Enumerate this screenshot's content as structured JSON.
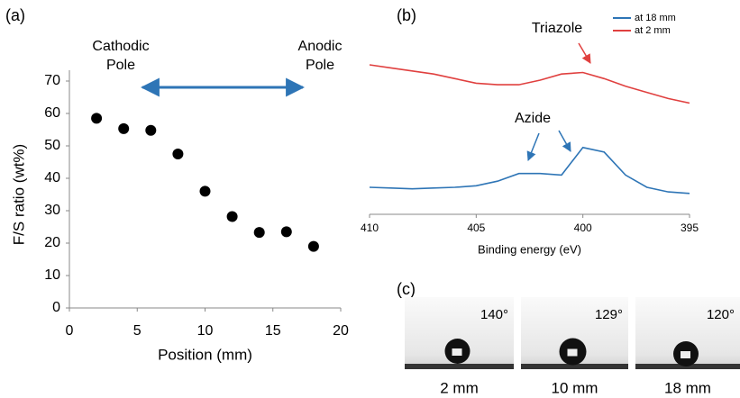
{
  "chart_data": [
    {
      "type": "scatter",
      "panel": "(a)",
      "x_label": "Position (mm)",
      "y_label": "F/S ratio (wt%)",
      "x": [
        2,
        4,
        6,
        8,
        10,
        12,
        14,
        16,
        18
      ],
      "values": [
        58.5,
        55.3,
        54.8,
        47.5,
        36,
        28.2,
        23.3,
        23.5,
        19
      ],
      "color": "#000000",
      "xlim": [
        0,
        20
      ],
      "xticks": [
        0,
        5,
        10,
        15,
        20
      ],
      "ylim": [
        0,
        70
      ],
      "yticks": [
        0,
        10,
        20,
        30,
        40,
        50,
        60,
        70
      ],
      "annotations": [
        [
          "Cathodic",
          "Pole"
        ],
        [
          "Anodic",
          "Pole"
        ]
      ]
    },
    {
      "type": "line",
      "panel": "(b)",
      "x_label": "Binding energy (eV)",
      "x": [
        410,
        409,
        408,
        407,
        406,
        405,
        404,
        403,
        402,
        401,
        400,
        399,
        398,
        397,
        396,
        395
      ],
      "series": [
        {
          "name": "at 18 mm",
          "color": "#2e75b6",
          "values": [
            10,
            9.5,
            9,
            9.5,
            10,
            11,
            14,
            19,
            19,
            18,
            36,
            33,
            18,
            10,
            7,
            6
          ]
        },
        {
          "name": "at 2 mm",
          "color": "#e0403f",
          "values": [
            90,
            88,
            86,
            84,
            81,
            78,
            77,
            77,
            80,
            84,
            85,
            81,
            76,
            72,
            68,
            65
          ]
        }
      ],
      "xlim": [
        410,
        395
      ],
      "xticks": [
        410,
        405,
        400,
        395
      ],
      "ylim": [
        0,
        100
      ],
      "annotations": [
        "Triazole",
        "Azide"
      ]
    }
  ],
  "images": {
    "panel": "(c)",
    "items": [
      {
        "angle": "140°",
        "caption": "2 mm"
      },
      {
        "angle": "129°",
        "caption": "10 mm"
      },
      {
        "angle": "120°",
        "caption": "18 mm"
      }
    ]
  }
}
